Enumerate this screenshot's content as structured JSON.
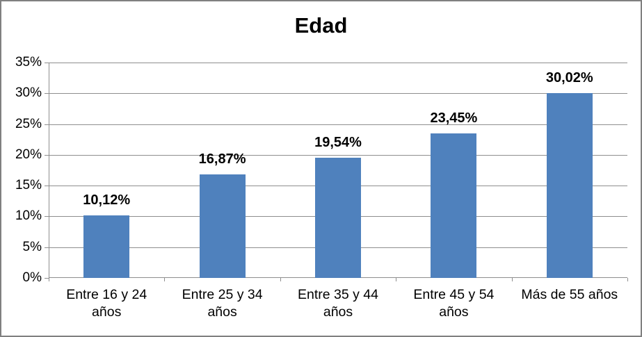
{
  "chart_data": {
    "type": "bar",
    "title": "Edad",
    "categories": [
      "Entre 16 y 24 años",
      "Entre 25 y 34 años",
      "Entre 35 y 44 años",
      "Entre 45 y 54 años",
      "Más de 55 años"
    ],
    "values": [
      10.12,
      16.87,
      19.54,
      23.45,
      30.02
    ],
    "value_labels": [
      "10,12%",
      "16,87%",
      "19,54%",
      "23,45%",
      "30,02%"
    ],
    "xlabel": "",
    "ylabel": "",
    "ylim": [
      0,
      35
    ],
    "ytick_step": 5,
    "ytick_labels": [
      "0%",
      "5%",
      "10%",
      "15%",
      "20%",
      "25%",
      "30%",
      "35%"
    ],
    "grid": true,
    "legend": "none",
    "colors": {
      "bar": "#4F81BD",
      "gridline": "#8E8E8E",
      "axis": "#8E8E8E",
      "text": "#000000",
      "frame_border": "#808080",
      "background": "#FFFFFF"
    }
  }
}
